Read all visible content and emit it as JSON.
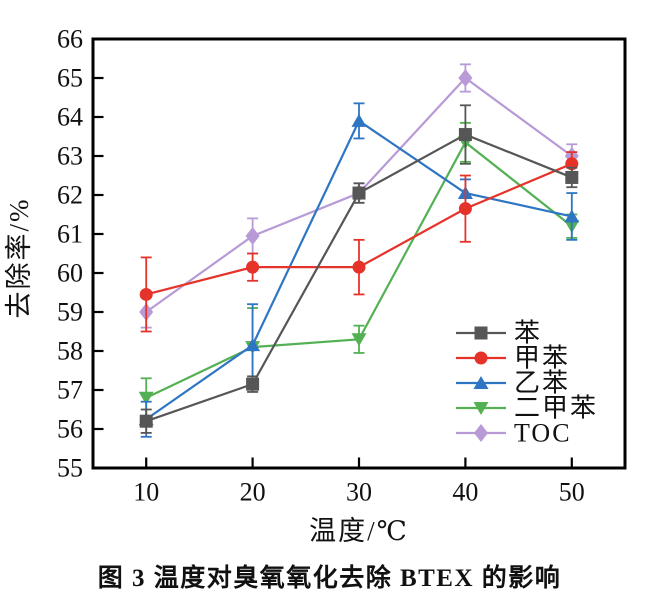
{
  "figure": {
    "caption": "图 3  温度对臭氧氧化去除 BTEX 的影响"
  },
  "chart_data": {
    "type": "line",
    "title": "",
    "xlabel": "温度/℃",
    "ylabel": "去除率/%",
    "x": [
      10,
      20,
      30,
      40,
      50
    ],
    "xlim": [
      5,
      55
    ],
    "ylim": [
      55,
      66
    ],
    "xticks": [
      10,
      20,
      30,
      40,
      50
    ],
    "yticks": [
      55,
      56,
      57,
      58,
      59,
      60,
      61,
      62,
      63,
      64,
      65,
      66
    ],
    "grid": false,
    "legend_position": "lower-right",
    "frame_color": "#000000",
    "series": [
      {
        "name": "苯",
        "marker": "square",
        "color": "#565656",
        "values": [
          56.2,
          57.15,
          62.05,
          63.55,
          62.45
        ],
        "errors": [
          0.3,
          0.2,
          0.25,
          0.75,
          0.25
        ]
      },
      {
        "name": "甲苯",
        "marker": "circle",
        "color": "#e6332a",
        "values": [
          59.45,
          60.15,
          60.15,
          61.65,
          62.8
        ],
        "errors": [
          0.95,
          0.35,
          0.7,
          0.85,
          0.3
        ]
      },
      {
        "name": "乙苯",
        "marker": "triangle-up",
        "color": "#2e75c3",
        "values": [
          56.25,
          58.15,
          63.9,
          62.05,
          61.45
        ],
        "errors": [
          0.45,
          1.05,
          0.45,
          0.35,
          0.6
        ]
      },
      {
        "name": "二甲苯",
        "marker": "triangle-down",
        "color": "#53b153",
        "values": [
          56.8,
          58.1,
          58.3,
          63.35,
          61.2
        ],
        "errors": [
          0.5,
          1.0,
          0.35,
          0.5,
          0.3
        ]
      },
      {
        "name": "TOC",
        "marker": "diamond",
        "color": "#b79ad6",
        "values": [
          59.0,
          60.95,
          62.05,
          65.0,
          63.0
        ],
        "errors": [
          0.4,
          0.45,
          0.25,
          0.35,
          0.3
        ]
      }
    ]
  }
}
